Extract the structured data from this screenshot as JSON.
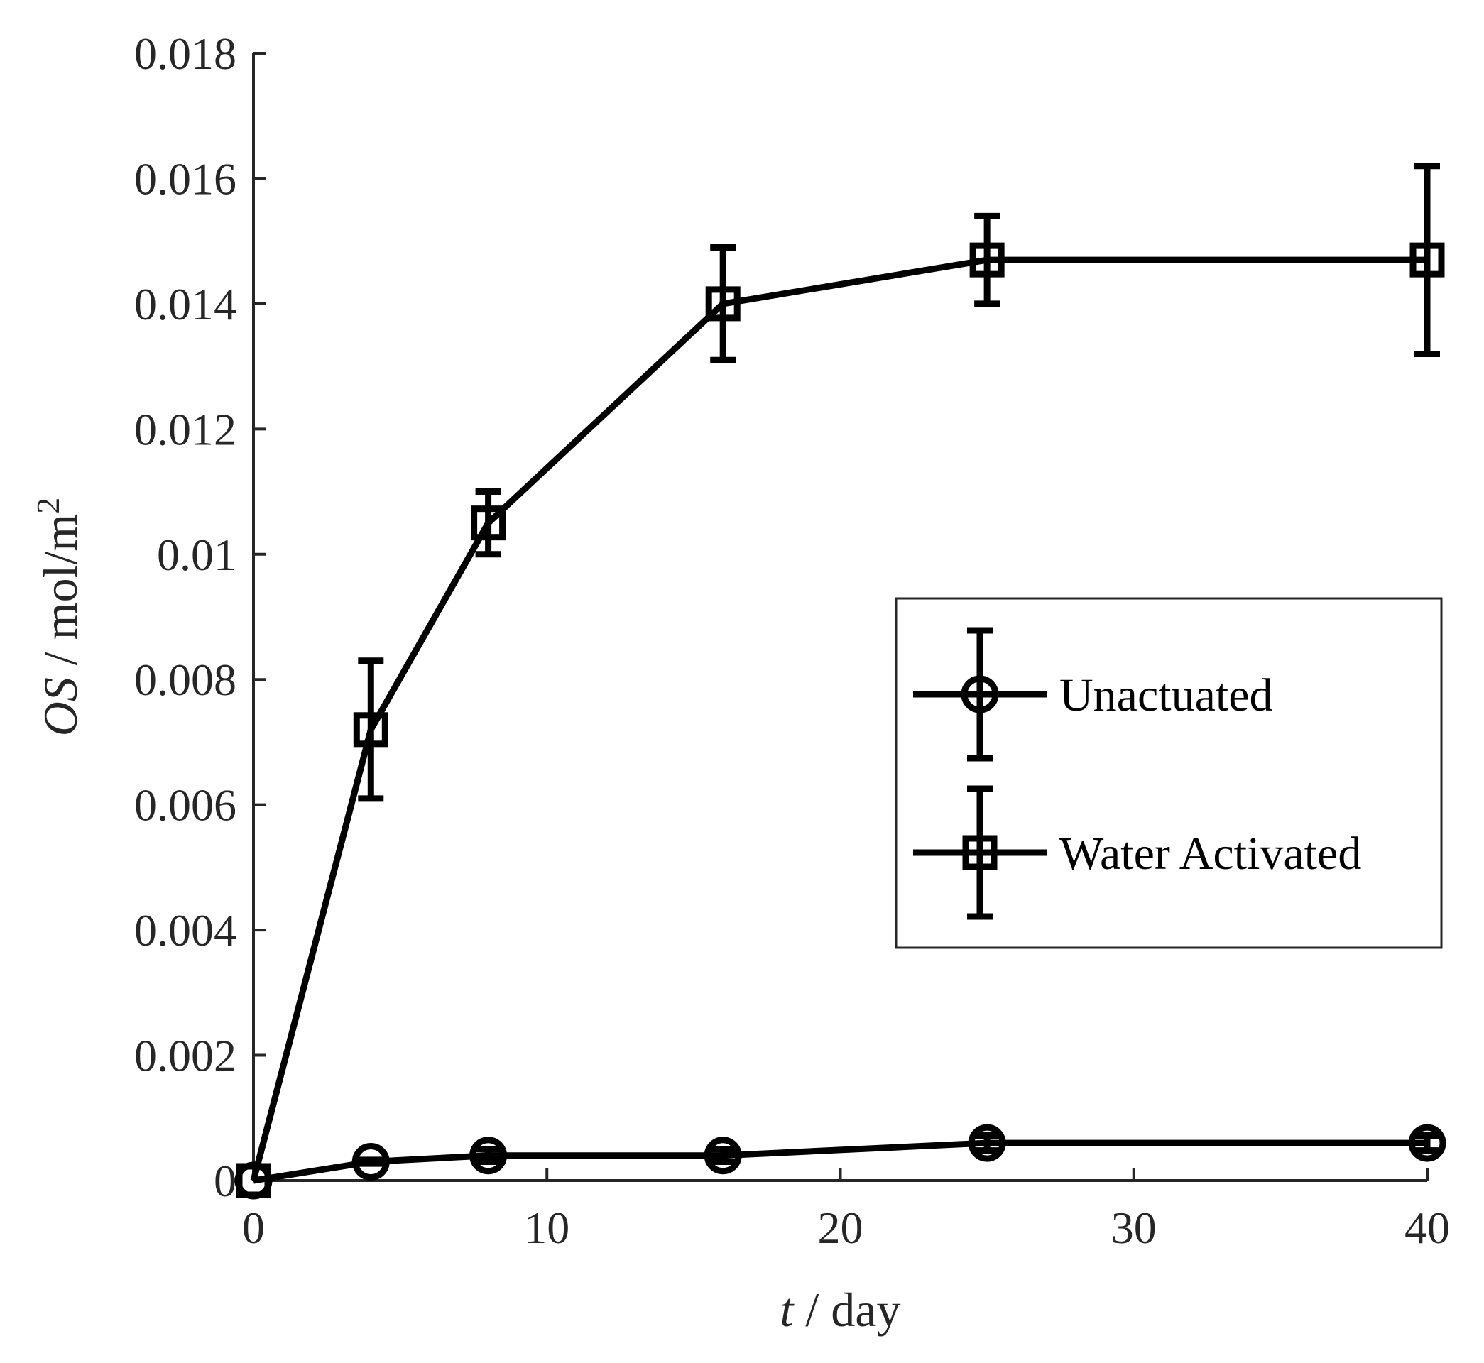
{
  "chart_data": {
    "type": "line",
    "title": "",
    "xlabel": {
      "var": "t",
      "unit": " / day"
    },
    "ylabel": {
      "var": "OS",
      "unit": " / mol/m",
      "sup": "2"
    },
    "xlim": [
      0,
      40
    ],
    "ylim": [
      0,
      0.018
    ],
    "xticks": [
      0,
      10,
      20,
      30,
      40
    ],
    "xtick_labels": [
      "0",
      "10",
      "20",
      "30",
      "40"
    ],
    "yticks": [
      0,
      0.002,
      0.004,
      0.006,
      0.008,
      0.01,
      0.012,
      0.014,
      0.016,
      0.018
    ],
    "ytick_labels": [
      "0",
      "0.002",
      "0.004",
      "0.006",
      "0.008",
      "0.01",
      "0.012",
      "0.014",
      "0.016",
      "0.018"
    ],
    "grid": false,
    "legend_position": "right",
    "series": [
      {
        "name": "Unactuated",
        "marker": "circle",
        "x": [
          0,
          4,
          8,
          16,
          25,
          40
        ],
        "y": [
          0,
          0.0003,
          0.0004,
          0.0004,
          0.0006,
          0.0006
        ],
        "err": [
          0,
          3e-05,
          0.0001,
          0.0001,
          0.00012,
          0.00012
        ]
      },
      {
        "name": "Water Activated",
        "marker": "square",
        "x": [
          0,
          4,
          8,
          16,
          25,
          40
        ],
        "y": [
          0,
          0.0072,
          0.0105,
          0.014,
          0.0147,
          0.0147
        ],
        "err": [
          0,
          0.0011,
          0.0005,
          0.0009,
          0.0007,
          0.0015
        ]
      }
    ],
    "colors": {
      "line": "#000000",
      "axis": "#262626",
      "background": "#ffffff"
    }
  }
}
